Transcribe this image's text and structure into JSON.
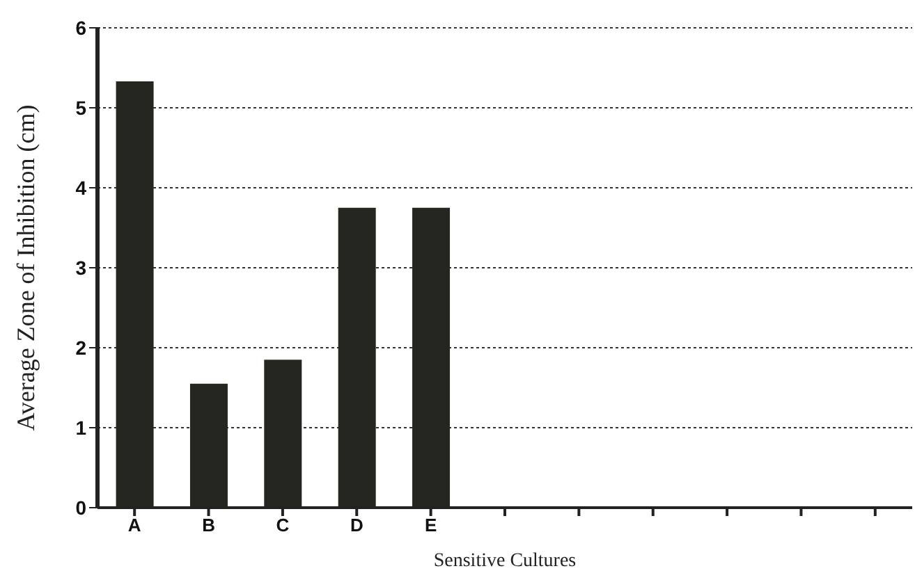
{
  "chart_data": {
    "type": "bar",
    "xlabel": "Sensitive Cultures",
    "ylabel": "Average Zone of Inhibition (cm)",
    "categories": [
      "A",
      "B",
      "C",
      "D",
      "E",
      null,
      null,
      null,
      null,
      null,
      null
    ],
    "values": [
      5.33,
      1.55,
      1.85,
      3.75,
      3.75,
      null,
      null,
      null,
      null,
      null,
      null
    ],
    "color": "#262620",
    "ylim": [
      0,
      6
    ],
    "yticks": [
      0,
      1,
      2,
      3,
      4,
      5,
      6
    ],
    "grid": "y"
  }
}
